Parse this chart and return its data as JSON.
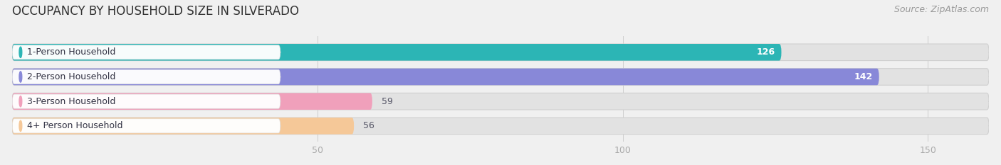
{
  "title": "OCCUPANCY BY HOUSEHOLD SIZE IN SILVERADO",
  "source": "Source: ZipAtlas.com",
  "categories": [
    "1-Person Household",
    "2-Person Household",
    "3-Person Household",
    "4+ Person Household"
  ],
  "values": [
    126,
    142,
    59,
    56
  ],
  "bar_colors": [
    "#2cb5b5",
    "#8888d8",
    "#f0a0bb",
    "#f5c898"
  ],
  "label_colors": [
    "#ffffff",
    "#ffffff",
    "#555566",
    "#555566"
  ],
  "xlim_max": 160,
  "xticks": [
    50,
    100,
    150
  ],
  "background_color": "#f0f0f0",
  "bar_bg_color": "#e2e2e2",
  "title_fontsize": 12,
  "source_fontsize": 9,
  "label_fontsize": 9,
  "value_fontsize": 9
}
